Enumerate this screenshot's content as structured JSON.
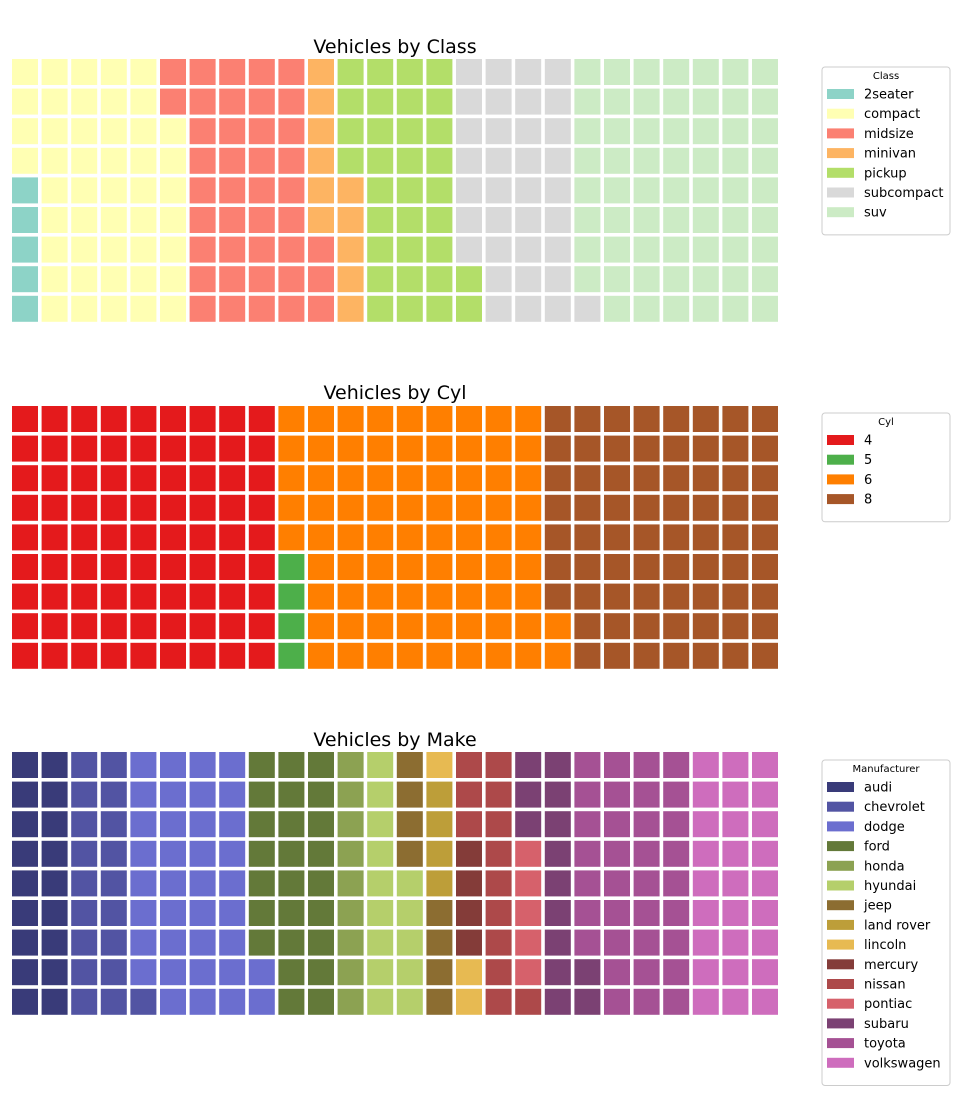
{
  "chart_data": [
    {
      "type": "waffle",
      "title": "Vehicles by Class",
      "grid": {
        "rows": 9,
        "cols": 26
      },
      "legend": {
        "title": "Class",
        "placement": "right"
      },
      "categories": [
        "2seater",
        "compact",
        "midsize",
        "minivan",
        "pickup",
        "subcompact",
        "suv"
      ],
      "values": [
        5,
        47,
        41,
        11,
        33,
        35,
        62
      ],
      "colors": [
        "#8dd3c7",
        "#ffffb3",
        "#fb8072",
        "#fdb462",
        "#b3de69",
        "#d9d9d9",
        "#ccebc5"
      ]
    },
    {
      "type": "waffle",
      "title": "Vehicles by Cyl",
      "grid": {
        "rows": 9,
        "cols": 26
      },
      "legend": {
        "title": "Cyl",
        "placement": "right"
      },
      "categories": [
        "4",
        "5",
        "6",
        "8"
      ],
      "values": [
        81,
        4,
        79,
        70
      ],
      "colors": [
        "#e41a1c",
        "#4daf4a",
        "#ff7f00",
        "#a65628"
      ]
    },
    {
      "type": "waffle",
      "title": "Vehicles by Make",
      "grid": {
        "rows": 9,
        "cols": 26
      },
      "legend": {
        "title": "Manufacturer",
        "placement": "right"
      },
      "categories": [
        "audi",
        "chevrolet",
        "dodge",
        "ford",
        "honda",
        "hyundai",
        "jeep",
        "land rover",
        "lincoln",
        "mercury",
        "nissan",
        "pontiac",
        "subaru",
        "toyota",
        "volkswagen"
      ],
      "values": [
        18,
        19,
        37,
        25,
        9,
        14,
        8,
        4,
        3,
        4,
        13,
        5,
        14,
        34,
        27
      ],
      "colors": [
        "#393b79",
        "#5254a3",
        "#6b6ecf",
        "#637939",
        "#8ca252",
        "#b5cf6b",
        "#8c6d31",
        "#bd9e39",
        "#e7ba52",
        "#843c39",
        "#ad494a",
        "#d6616b",
        "#7b4173",
        "#a55194",
        "#ce6dbd"
      ]
    }
  ]
}
